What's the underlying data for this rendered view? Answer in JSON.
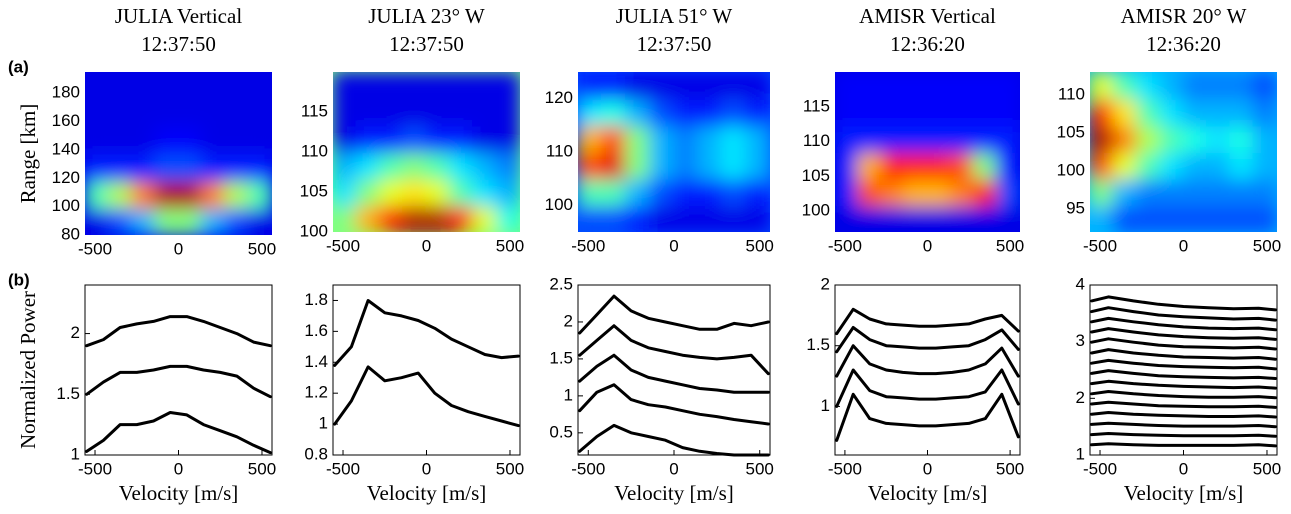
{
  "chart_data": [
    {
      "type": "heatmap",
      "title": "JULIA Vertical",
      "subtitle": "12:37:50",
      "panel_label": "(a)",
      "ylabel": "Range [km]",
      "colormap": "jet",
      "xlim": [
        -560,
        560
      ],
      "xticks": [
        -500,
        0,
        500
      ],
      "ylim": [
        80,
        195
      ],
      "yticks": [
        80,
        100,
        120,
        140,
        160,
        180
      ],
      "z": [
        [
          0.1,
          0.2,
          0.3,
          0.5,
          0.5,
          0.3,
          0.2,
          0.1
        ],
        [
          0.45,
          0.55,
          0.75,
          0.95,
          0.95,
          0.75,
          0.55,
          0.45
        ],
        [
          0.15,
          0.15,
          0.15,
          0.2,
          0.2,
          0.15,
          0.15,
          0.15
        ],
        [
          0.1,
          0.1,
          0.1,
          0.12,
          0.12,
          0.1,
          0.1,
          0.1
        ],
        [
          0.1,
          0.1,
          0.1,
          0.1,
          0.1,
          0.1,
          0.1,
          0.1
        ],
        [
          0.1,
          0.1,
          0.1,
          0.1,
          0.1,
          0.1,
          0.1,
          0.1
        ]
      ]
    },
    {
      "type": "heatmap",
      "title": "JULIA 23° W",
      "subtitle": "12:37:50",
      "colormap": "jet",
      "xlim": [
        -560,
        560
      ],
      "xticks": [
        -500,
        0,
        500
      ],
      "ylim": [
        100,
        120
      ],
      "yticks": [
        100,
        105,
        110,
        115
      ],
      "z": [
        [
          0.5,
          0.7,
          0.85,
          0.95,
          0.95,
          0.85,
          0.6,
          0.4
        ],
        [
          0.35,
          0.5,
          0.6,
          0.65,
          0.6,
          0.45,
          0.35,
          0.3
        ],
        [
          0.3,
          0.35,
          0.45,
          0.5,
          0.45,
          0.35,
          0.3,
          0.25
        ],
        [
          0.1,
          0.15,
          0.15,
          0.2,
          0.15,
          0.15,
          0.1,
          0.1
        ],
        [
          0.1,
          0.1,
          0.1,
          0.1,
          0.1,
          0.1,
          0.1,
          0.1
        ],
        [
          0.1,
          0.1,
          0.1,
          0.1,
          0.1,
          0.1,
          0.1,
          0.1
        ]
      ]
    },
    {
      "type": "heatmap",
      "title": "JULIA 51° W",
      "subtitle": "12:37:50",
      "colormap": "jet",
      "xlim": [
        -560,
        560
      ],
      "xticks": [
        -500,
        0,
        500
      ],
      "ylim": [
        95,
        125
      ],
      "yticks": [
        100,
        110,
        120
      ],
      "z": [
        [
          0.2,
          0.2,
          0.15,
          0.1,
          0.1,
          0.1,
          0.1,
          0.1
        ],
        [
          0.45,
          0.45,
          0.3,
          0.2,
          0.15,
          0.15,
          0.2,
          0.15
        ],
        [
          0.8,
          0.9,
          0.5,
          0.3,
          0.25,
          0.3,
          0.35,
          0.3
        ],
        [
          0.7,
          0.8,
          0.5,
          0.3,
          0.25,
          0.3,
          0.35,
          0.3
        ],
        [
          0.35,
          0.4,
          0.3,
          0.2,
          0.15,
          0.15,
          0.2,
          0.15
        ],
        [
          0.15,
          0.15,
          0.1,
          0.1,
          0.1,
          0.1,
          0.1,
          0.1
        ]
      ]
    },
    {
      "type": "heatmap",
      "title": "AMISR Vertical",
      "subtitle": "12:36:20",
      "colormap": "jet",
      "xlim": [
        -560,
        560
      ],
      "xticks": [
        -500,
        0,
        500
      ],
      "ylim": [
        97,
        120
      ],
      "yticks": [
        100,
        105,
        110,
        115
      ],
      "z": [
        [
          0.1,
          0.1,
          0.1,
          0.1,
          0.1,
          0.1,
          0.1,
          0.1
        ],
        [
          0.15,
          0.8,
          0.75,
          0.7,
          0.7,
          0.75,
          0.85,
          0.2
        ],
        [
          0.15,
          0.7,
          0.85,
          0.85,
          0.85,
          0.8,
          0.5,
          0.15
        ],
        [
          0.15,
          0.15,
          0.15,
          0.15,
          0.15,
          0.15,
          0.15,
          0.15
        ],
        [
          0.12,
          0.12,
          0.12,
          0.12,
          0.12,
          0.12,
          0.12,
          0.12
        ],
        [
          0.12,
          0.12,
          0.12,
          0.12,
          0.12,
          0.12,
          0.12,
          0.12
        ]
      ]
    },
    {
      "type": "heatmap",
      "title": "AMISR 20° W",
      "subtitle": "12:36:20",
      "colormap": "jet",
      "xlim": [
        -560,
        560
      ],
      "xticks": [
        -500,
        0,
        500
      ],
      "ylim": [
        92,
        113
      ],
      "yticks": [
        95,
        100,
        105,
        110
      ],
      "z": [
        [
          0.3,
          0.2,
          0.2,
          0.2,
          0.2,
          0.2,
          0.2,
          0.2
        ],
        [
          0.5,
          0.3,
          0.25,
          0.25,
          0.25,
          0.25,
          0.25,
          0.25
        ],
        [
          0.8,
          0.6,
          0.45,
          0.35,
          0.3,
          0.3,
          0.35,
          0.3
        ],
        [
          0.95,
          0.75,
          0.55,
          0.45,
          0.4,
          0.35,
          0.4,
          0.3
        ],
        [
          0.85,
          0.65,
          0.45,
          0.35,
          0.3,
          0.3,
          0.3,
          0.25
        ],
        [
          0.6,
          0.45,
          0.35,
          0.3,
          0.25,
          0.25,
          0.25,
          0.2
        ]
      ]
    },
    {
      "type": "line",
      "panel_label": "(b)",
      "ylabel": "Normalized Power",
      "xlabel": "Velocity [m/s]",
      "xlim": [
        -560,
        560
      ],
      "xticks": [
        -500,
        0,
        500
      ],
      "ylim": [
        1,
        2.4
      ],
      "yticks": [
        1,
        1.5,
        2
      ],
      "x": [
        -550,
        -450,
        -350,
        -250,
        -150,
        -50,
        50,
        150,
        250,
        350,
        450,
        550
      ],
      "series": [
        {
          "color": "#000000",
          "values": [
            1.9,
            1.95,
            2.05,
            2.08,
            2.1,
            2.14,
            2.14,
            2.1,
            2.05,
            2.0,
            1.93,
            1.9
          ]
        },
        {
          "color": "#000000",
          "values": [
            1.5,
            1.6,
            1.68,
            1.68,
            1.7,
            1.73,
            1.73,
            1.7,
            1.68,
            1.65,
            1.55,
            1.48
          ]
        },
        {
          "color": "#000000",
          "values": [
            1.03,
            1.12,
            1.25,
            1.25,
            1.28,
            1.35,
            1.33,
            1.25,
            1.2,
            1.15,
            1.08,
            1.02
          ]
        }
      ]
    },
    {
      "type": "line",
      "xlabel": "Velocity [m/s]",
      "xlim": [
        -560,
        560
      ],
      "xticks": [
        -500,
        0,
        500
      ],
      "ylim": [
        0.8,
        1.9
      ],
      "yticks": [
        0.8,
        1,
        1.2,
        1.4,
        1.6,
        1.8
      ],
      "x": [
        -550,
        -450,
        -350,
        -250,
        -150,
        -50,
        50,
        150,
        250,
        350,
        450,
        550
      ],
      "series": [
        {
          "color": "#000000",
          "values": [
            1.38,
            1.5,
            1.8,
            1.72,
            1.7,
            1.67,
            1.62,
            1.55,
            1.5,
            1.45,
            1.43,
            1.44
          ]
        },
        {
          "color": "#000000",
          "values": [
            1.0,
            1.15,
            1.37,
            1.28,
            1.3,
            1.33,
            1.2,
            1.12,
            1.08,
            1.05,
            1.02,
            0.99
          ]
        }
      ]
    },
    {
      "type": "line",
      "xlabel": "Velocity [m/s]",
      "xlim": [
        -560,
        560
      ],
      "xticks": [
        -500,
        0,
        500
      ],
      "ylim": [
        0.2,
        2.5
      ],
      "yticks": [
        0.5,
        1,
        1.5,
        2,
        2.5
      ],
      "x": [
        -550,
        -450,
        -350,
        -250,
        -150,
        -50,
        50,
        150,
        250,
        350,
        450,
        550
      ],
      "series": [
        {
          "color": "#000000",
          "values": [
            1.85,
            2.1,
            2.35,
            2.15,
            2.05,
            2.0,
            1.95,
            1.9,
            1.9,
            1.98,
            1.95,
            2.0
          ]
        },
        {
          "color": "#000000",
          "values": [
            1.55,
            1.75,
            1.95,
            1.75,
            1.65,
            1.6,
            1.55,
            1.52,
            1.5,
            1.52,
            1.55,
            1.3
          ]
        },
        {
          "color": "#000000",
          "values": [
            1.2,
            1.4,
            1.55,
            1.35,
            1.25,
            1.2,
            1.15,
            1.1,
            1.08,
            1.05,
            1.05,
            1.05
          ]
        },
        {
          "color": "#000000",
          "values": [
            0.8,
            1.05,
            1.15,
            0.95,
            0.88,
            0.85,
            0.8,
            0.75,
            0.72,
            0.68,
            0.65,
            0.62
          ]
        },
        {
          "color": "#000000",
          "values": [
            0.25,
            0.45,
            0.6,
            0.5,
            0.45,
            0.4,
            0.3,
            0.25,
            0.22,
            0.2,
            0.2,
            0.2
          ]
        }
      ]
    },
    {
      "type": "line",
      "xlabel": "Velocity [m/s]",
      "xlim": [
        -560,
        560
      ],
      "xticks": [
        -500,
        0,
        500
      ],
      "ylim": [
        0.6,
        2
      ],
      "yticks": [
        1,
        1.5,
        2
      ],
      "x": [
        -550,
        -450,
        -350,
        -250,
        -150,
        -50,
        50,
        150,
        250,
        350,
        450,
        550
      ],
      "series": [
        {
          "color": "#000000",
          "values": [
            1.6,
            1.8,
            1.72,
            1.68,
            1.67,
            1.66,
            1.66,
            1.67,
            1.68,
            1.72,
            1.75,
            1.62
          ]
        },
        {
          "color": "#000000",
          "values": [
            1.45,
            1.65,
            1.55,
            1.5,
            1.49,
            1.48,
            1.48,
            1.49,
            1.5,
            1.55,
            1.63,
            1.47
          ]
        },
        {
          "color": "#000000",
          "values": [
            1.25,
            1.5,
            1.35,
            1.3,
            1.28,
            1.27,
            1.27,
            1.28,
            1.3,
            1.35,
            1.48,
            1.25
          ]
        },
        {
          "color": "#000000",
          "values": [
            1.0,
            1.3,
            1.13,
            1.08,
            1.07,
            1.06,
            1.06,
            1.07,
            1.08,
            1.12,
            1.3,
            1.02
          ]
        },
        {
          "color": "#000000",
          "values": [
            0.72,
            1.1,
            0.9,
            0.86,
            0.85,
            0.84,
            0.84,
            0.85,
            0.86,
            0.9,
            1.1,
            0.75
          ]
        }
      ]
    },
    {
      "type": "line",
      "xlabel": "Velocity [m/s]",
      "xlim": [
        -560,
        560
      ],
      "xticks": [
        -500,
        0,
        500
      ],
      "ylim": [
        1,
        4
      ],
      "yticks": [
        1,
        2,
        3,
        4
      ],
      "x": [
        -550,
        -450,
        -300,
        -150,
        0,
        150,
        300,
        450,
        550
      ],
      "series": [
        {
          "color": "#000000",
          "values": [
            3.72,
            3.79,
            3.72,
            3.66,
            3.62,
            3.6,
            3.58,
            3.59,
            3.56
          ]
        },
        {
          "color": "#000000",
          "values": [
            3.53,
            3.6,
            3.53,
            3.47,
            3.44,
            3.42,
            3.4,
            3.41,
            3.38
          ]
        },
        {
          "color": "#000000",
          "values": [
            3.35,
            3.41,
            3.35,
            3.3,
            3.26,
            3.24,
            3.23,
            3.24,
            3.21
          ]
        },
        {
          "color": "#000000",
          "values": [
            3.17,
            3.23,
            3.17,
            3.12,
            3.09,
            3.07,
            3.06,
            3.07,
            3.04
          ]
        },
        {
          "color": "#000000",
          "values": [
            2.99,
            3.05,
            2.99,
            2.94,
            2.91,
            2.9,
            2.89,
            2.9,
            2.87
          ]
        },
        {
          "color": "#000000",
          "values": [
            2.8,
            2.86,
            2.8,
            2.76,
            2.73,
            2.72,
            2.71,
            2.72,
            2.69
          ]
        },
        {
          "color": "#000000",
          "values": [
            2.62,
            2.67,
            2.62,
            2.58,
            2.56,
            2.55,
            2.54,
            2.55,
            2.52
          ]
        },
        {
          "color": "#000000",
          "values": [
            2.44,
            2.49,
            2.44,
            2.4,
            2.38,
            2.37,
            2.36,
            2.37,
            2.35
          ]
        },
        {
          "color": "#000000",
          "values": [
            2.26,
            2.3,
            2.26,
            2.23,
            2.21,
            2.2,
            2.19,
            2.2,
            2.18
          ]
        },
        {
          "color": "#000000",
          "values": [
            2.08,
            2.12,
            2.08,
            2.05,
            2.03,
            2.02,
            2.02,
            2.03,
            2.01
          ]
        },
        {
          "color": "#000000",
          "values": [
            1.9,
            1.93,
            1.9,
            1.87,
            1.86,
            1.85,
            1.85,
            1.86,
            1.84
          ]
        },
        {
          "color": "#000000",
          "values": [
            1.72,
            1.75,
            1.72,
            1.7,
            1.69,
            1.68,
            1.68,
            1.69,
            1.67
          ]
        },
        {
          "color": "#000000",
          "values": [
            1.54,
            1.56,
            1.54,
            1.52,
            1.51,
            1.51,
            1.51,
            1.52,
            1.5
          ]
        },
        {
          "color": "#000000",
          "values": [
            1.36,
            1.38,
            1.36,
            1.35,
            1.34,
            1.34,
            1.34,
            1.35,
            1.33
          ]
        },
        {
          "color": "#000000",
          "values": [
            1.18,
            1.2,
            1.18,
            1.17,
            1.17,
            1.17,
            1.17,
            1.18,
            1.16
          ]
        }
      ]
    }
  ]
}
